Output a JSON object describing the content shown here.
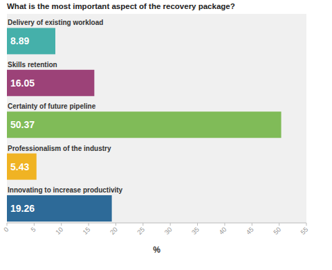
{
  "chart_data": {
    "type": "bar",
    "orientation": "horizontal",
    "title": "What is the most important aspect of the recovery package?",
    "x_label": "%",
    "categories": [
      "Delivery of existing workload",
      "Skills retention",
      "Certainty of future pipeline",
      "Professionalism of the industry",
      "Innovating to increase productivity"
    ],
    "values": [
      8.89,
      16.05,
      50.37,
      5.43,
      19.26
    ],
    "colors": [
      "#45b0aa",
      "#9c4278",
      "#80bb58",
      "#f0b323",
      "#2d6a98"
    ],
    "xlim": [
      0,
      55
    ],
    "xticks": [
      0,
      5,
      10,
      15,
      20,
      25,
      30,
      35,
      40,
      45,
      50,
      55
    ],
    "grid": false,
    "data_labels": true
  }
}
